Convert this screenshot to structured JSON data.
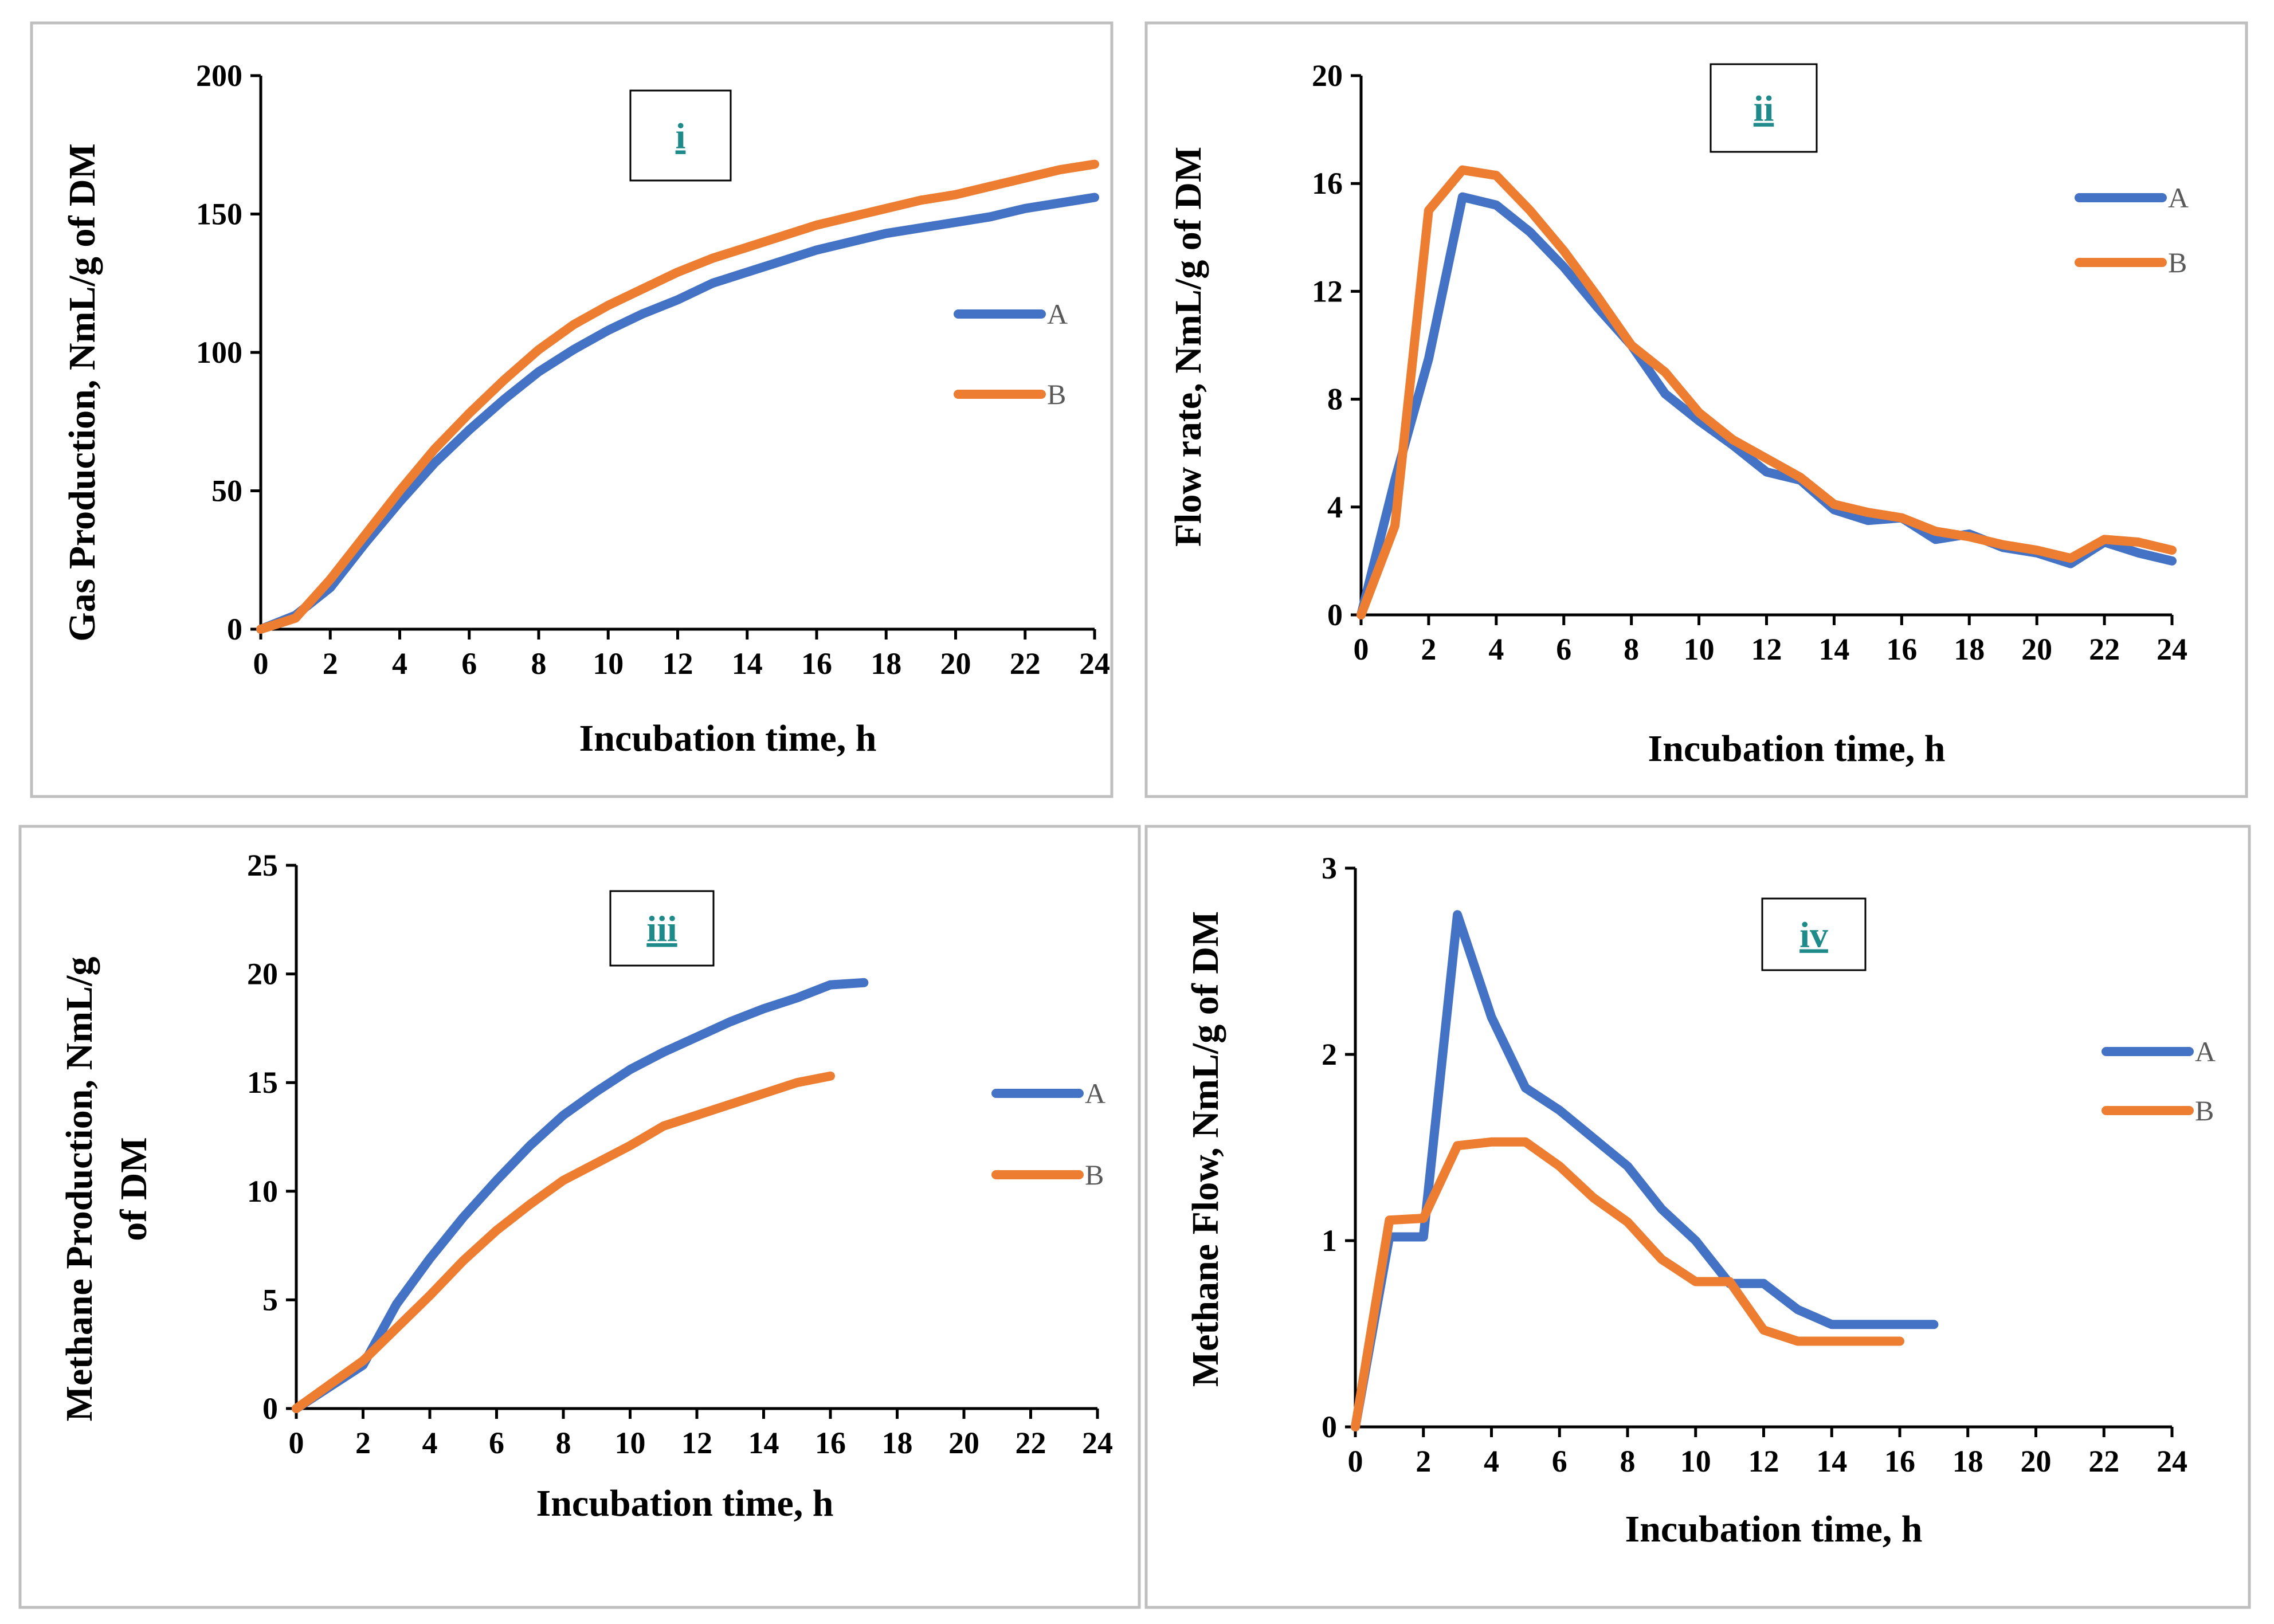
{
  "colors": {
    "series_A": "#4472C4",
    "series_B": "#ED7D31",
    "tag": "#1F8A8A"
  },
  "chart_data": [
    {
      "type": "line",
      "tag": "i",
      "title": "",
      "xlabel": "Incubation time, h",
      "ylabel": "Gas Production, NmL/g of DM",
      "xlim": [
        0,
        24
      ],
      "ylim": [
        0,
        200
      ],
      "xticks": [
        "0",
        "2",
        "4",
        "6",
        "8",
        "10",
        "12",
        "14",
        "16",
        "18",
        "20",
        "22",
        "24"
      ],
      "yticks": [
        "0",
        "50",
        "100",
        "150",
        "200"
      ],
      "series": [
        {
          "name": "A",
          "x": [
            0,
            1,
            2,
            3,
            4,
            5,
            6,
            7,
            8,
            9,
            10,
            11,
            12,
            13,
            14,
            15,
            16,
            17,
            18,
            19,
            20,
            21,
            22,
            23,
            24
          ],
          "y": [
            0,
            5,
            15,
            31,
            46,
            60,
            72,
            83,
            93,
            101,
            108,
            114,
            119,
            125,
            129,
            133,
            137,
            140,
            143,
            145,
            147,
            149,
            152,
            154,
            156
          ]
        },
        {
          "name": "B",
          "x": [
            0,
            1,
            2,
            3,
            4,
            5,
            6,
            7,
            8,
            9,
            10,
            11,
            12,
            13,
            14,
            15,
            16,
            17,
            18,
            19,
            20,
            21,
            22,
            23,
            24
          ],
          "y": [
            0,
            4,
            18,
            34,
            50,
            65,
            78,
            90,
            101,
            110,
            117,
            123,
            129,
            134,
            138,
            142,
            146,
            149,
            152,
            155,
            157,
            160,
            163,
            166,
            168
          ]
        }
      ]
    },
    {
      "type": "line",
      "tag": "ii",
      "title": "",
      "xlabel": "Incubation time, h",
      "ylabel": "Flow rate, NmL/g of DM",
      "xlim": [
        0,
        24
      ],
      "ylim": [
        0,
        20
      ],
      "xticks": [
        "0",
        "2",
        "4",
        "6",
        "8",
        "10",
        "12",
        "14",
        "16",
        "18",
        "20",
        "22",
        "24"
      ],
      "yticks": [
        "0",
        "4",
        "8",
        "12",
        "16",
        "20"
      ],
      "series": [
        {
          "name": "A",
          "x": [
            0,
            1,
            2,
            3,
            4,
            5,
            6,
            7,
            8,
            9,
            10,
            11,
            12,
            13,
            14,
            15,
            16,
            17,
            18,
            19,
            20,
            21,
            22,
            23,
            24
          ],
          "y": [
            0,
            5.0,
            9.5,
            15.5,
            15.2,
            14.2,
            12.9,
            11.4,
            10.0,
            8.2,
            7.2,
            6.3,
            5.3,
            5.0,
            3.9,
            3.5,
            3.6,
            2.8,
            3.0,
            2.5,
            2.3,
            1.9,
            2.7,
            2.3,
            2.0
          ]
        },
        {
          "name": "B",
          "x": [
            0,
            1,
            2,
            3,
            4,
            5,
            6,
            7,
            8,
            9,
            10,
            11,
            12,
            13,
            14,
            15,
            16,
            17,
            18,
            19,
            20,
            21,
            22,
            23,
            24
          ],
          "y": [
            0,
            3.3,
            15.0,
            16.5,
            16.3,
            15.0,
            13.5,
            11.8,
            10.0,
            9.0,
            7.5,
            6.5,
            5.8,
            5.1,
            4.1,
            3.8,
            3.6,
            3.1,
            2.9,
            2.6,
            2.4,
            2.1,
            2.8,
            2.7,
            2.4
          ]
        }
      ]
    },
    {
      "type": "line",
      "tag": "iii",
      "title": "",
      "xlabel": "Incubation time, h",
      "ylabel": "Methane Production,   NmL/g of DM",
      "ylabel_lines": [
        "Methane Production,   NmL/g",
        "of DM"
      ],
      "xlim": [
        0,
        24
      ],
      "ylim": [
        0,
        25
      ],
      "xticks": [
        "0",
        "2",
        "4",
        "6",
        "8",
        "10",
        "12",
        "14",
        "16",
        "18",
        "20",
        "22",
        "24"
      ],
      "yticks": [
        "0",
        "5",
        "10",
        "15",
        "20",
        "25"
      ],
      "series": [
        {
          "name": "A",
          "x": [
            0,
            1,
            2,
            3,
            4,
            5,
            6,
            7,
            8,
            9,
            10,
            11,
            12,
            13,
            14,
            15,
            16,
            17
          ],
          "y": [
            0,
            1.0,
            2.0,
            4.8,
            6.9,
            8.8,
            10.5,
            12.1,
            13.5,
            14.6,
            15.6,
            16.4,
            17.1,
            17.8,
            18.4,
            18.9,
            19.5,
            19.6
          ]
        },
        {
          "name": "B",
          "x": [
            0,
            1,
            2,
            3,
            4,
            5,
            6,
            7,
            8,
            9,
            10,
            11,
            12,
            13,
            14,
            15,
            16
          ],
          "y": [
            0,
            1.1,
            2.2,
            3.7,
            5.2,
            6.8,
            8.2,
            9.4,
            10.5,
            11.3,
            12.1,
            13.0,
            13.5,
            14.0,
            14.5,
            15.0,
            15.3
          ]
        }
      ]
    },
    {
      "type": "line",
      "tag": "iv",
      "title": "",
      "xlabel": "Incubation time, h",
      "ylabel": "Methane Flow, NmL/g of DM",
      "xlim": [
        0,
        24
      ],
      "ylim": [
        0,
        3
      ],
      "xticks": [
        "0",
        "2",
        "4",
        "6",
        "8",
        "10",
        "12",
        "14",
        "16",
        "18",
        "20",
        "22",
        "24"
      ],
      "yticks": [
        "0",
        "1",
        "2",
        "3"
      ],
      "series": [
        {
          "name": "A",
          "x": [
            0,
            1,
            2,
            3,
            4,
            5,
            6,
            7,
            8,
            9,
            10,
            11,
            12,
            13,
            14,
            15,
            16,
            17
          ],
          "y": [
            0,
            1.02,
            1.02,
            2.75,
            2.2,
            1.82,
            1.7,
            1.55,
            1.4,
            1.17,
            1.0,
            0.77,
            0.77,
            0.63,
            0.55,
            0.55,
            0.55,
            0.55
          ]
        },
        {
          "name": "B",
          "x": [
            0,
            1,
            2,
            3,
            4,
            5,
            6,
            7,
            8,
            9,
            10,
            11,
            12,
            13,
            14,
            15,
            16
          ],
          "y": [
            0,
            1.11,
            1.12,
            1.51,
            1.53,
            1.53,
            1.4,
            1.23,
            1.1,
            0.9,
            0.78,
            0.78,
            0.52,
            0.46,
            0.46,
            0.46,
            0.46
          ]
        }
      ]
    }
  ]
}
